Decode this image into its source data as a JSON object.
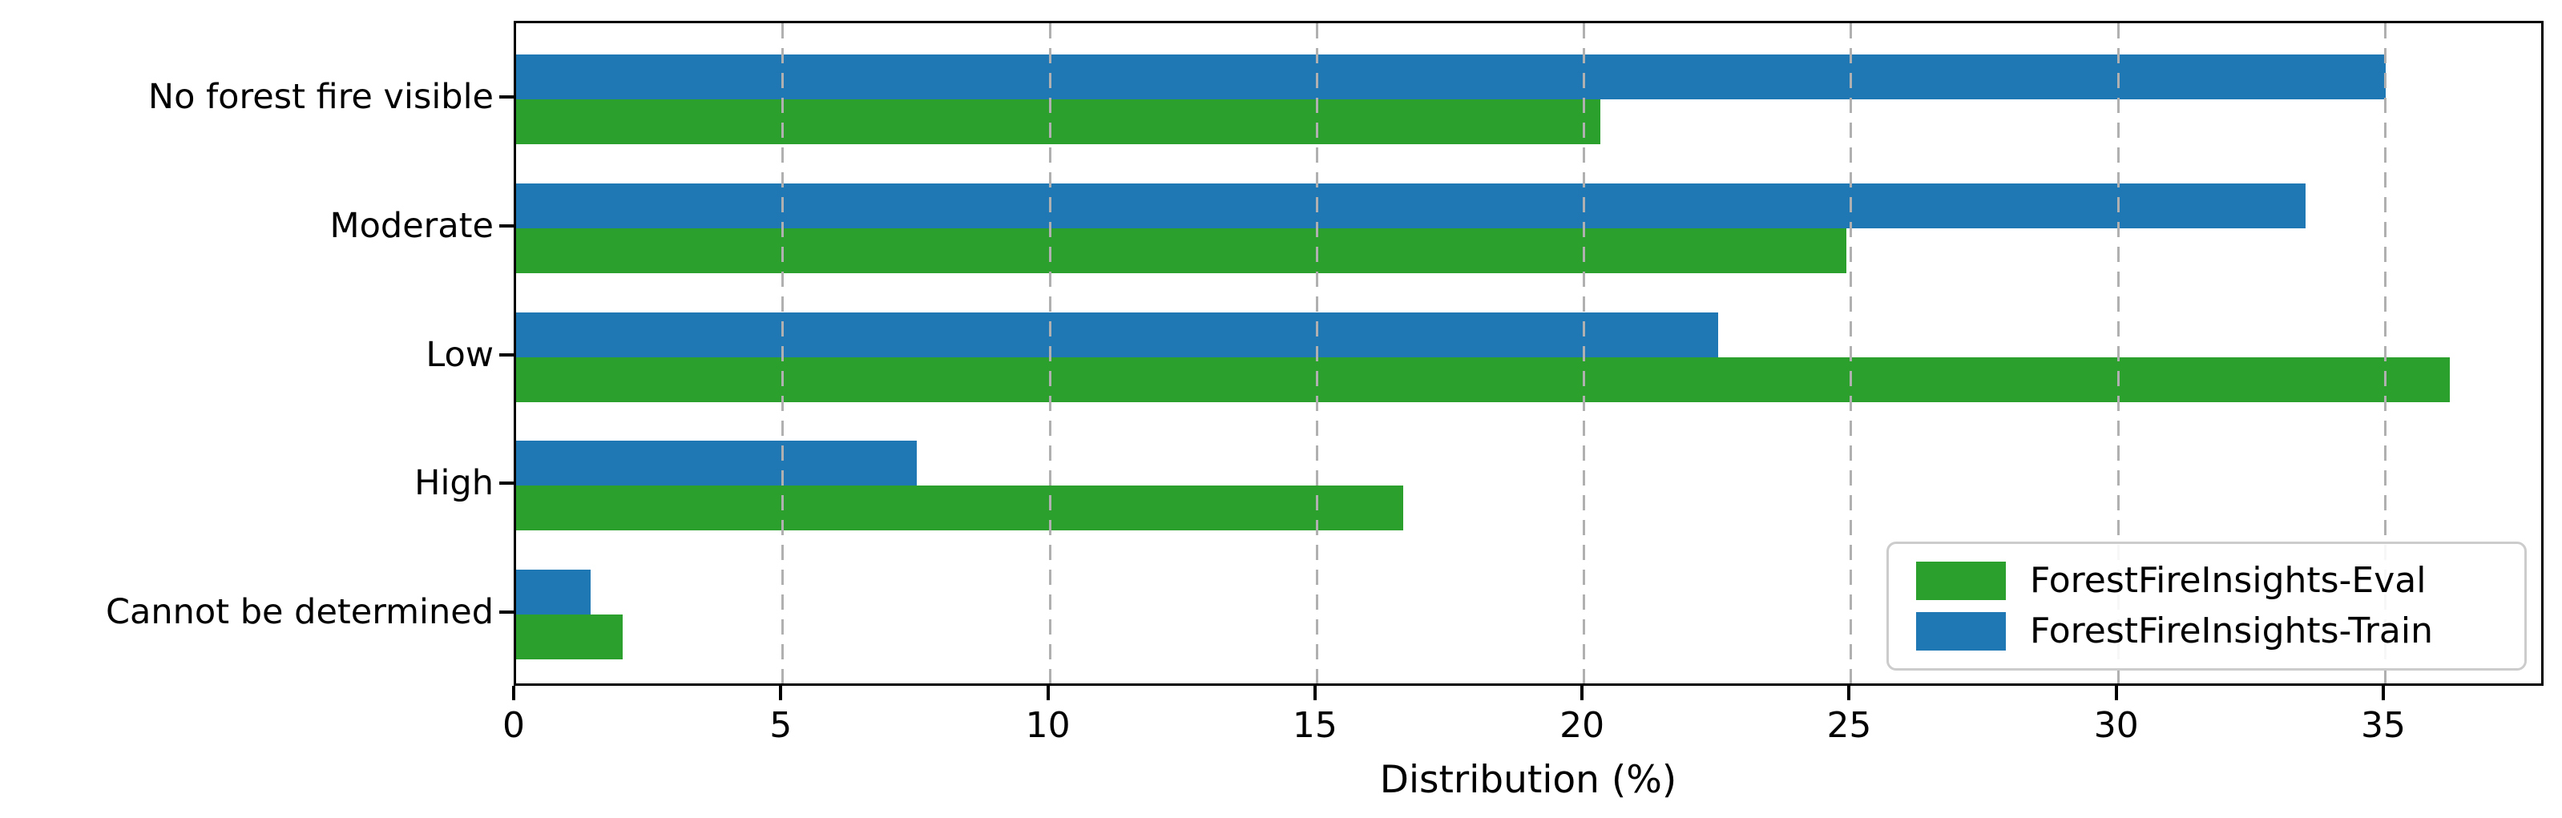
{
  "chart_data": {
    "type": "bar",
    "orientation": "horizontal",
    "title": "",
    "xlabel": "Distribution (%)",
    "ylabel": "",
    "categories": [
      "No forest fire visible",
      "Moderate",
      "Low",
      "High",
      "Cannot be determined"
    ],
    "series": [
      {
        "name": "ForestFireInsights-Eval",
        "color": "#2ca02c",
        "position_in_pair": "bottom",
        "values": [
          20.3,
          24.9,
          36.2,
          16.6,
          2.0
        ]
      },
      {
        "name": "ForestFireInsights-Train",
        "color": "#1f77b4",
        "position_in_pair": "top",
        "values": [
          35.0,
          33.5,
          22.5,
          7.5,
          1.4
        ]
      }
    ],
    "xticks": [
      0,
      5,
      10,
      15,
      20,
      25,
      30,
      35
    ],
    "xlim": [
      0,
      38
    ],
    "grid": "vertical-dashed",
    "grid_color": "#b0b0b0",
    "grid_above_bars": true,
    "legend_position": "lower right",
    "spine_color": "#000000",
    "background_color": "#ffffff"
  }
}
